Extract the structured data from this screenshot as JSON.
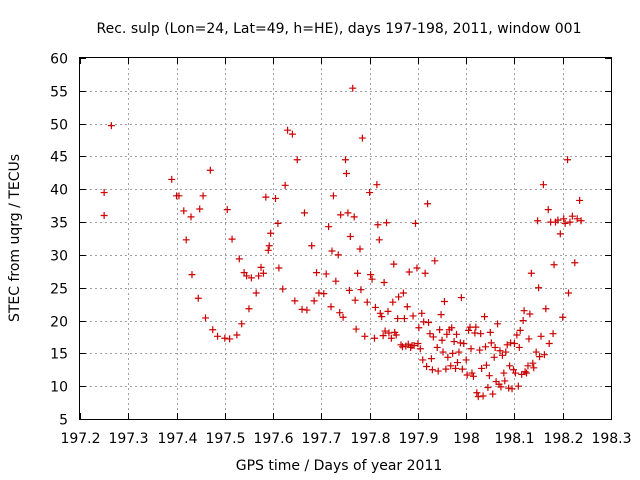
{
  "chart_data": {
    "type": "scatter",
    "title": "Rec. sulp (Lon=24, Lat=49, h=HE), days 197-198, 2011, window 001",
    "xlabel": "GPS time / Days of year 2011",
    "ylabel": "STEC from uqrg / TECUs",
    "xlim": [
      197.2,
      198.3
    ],
    "ylim": [
      5,
      60
    ],
    "xticks": [
      197.2,
      197.3,
      197.4,
      197.5,
      197.6,
      197.7,
      197.8,
      197.9,
      198,
      198.1,
      198.2,
      198.3
    ],
    "xtick_labels": [
      "197.2",
      "197.3",
      "197.4",
      "197.5",
      "197.6",
      "197.7",
      "197.8",
      "197.9",
      "198",
      "198.1",
      "198.2",
      "198.3"
    ],
    "yticks": [
      5,
      10,
      15,
      20,
      25,
      30,
      35,
      40,
      45,
      50,
      55,
      60
    ],
    "ytick_labels": [
      "5",
      "10",
      "15",
      "20",
      "25",
      "30",
      "35",
      "40",
      "45",
      "50",
      "55",
      "60"
    ],
    "grid": true,
    "marker": "plus",
    "color": "#cc0000",
    "points": [
      [
        197.25,
        39.5
      ],
      [
        197.25,
        36.0
      ],
      [
        197.265,
        49.7
      ],
      [
        197.39,
        41.5
      ],
      [
        197.4,
        39.0
      ],
      [
        197.405,
        39.0
      ],
      [
        197.415,
        36.7
      ],
      [
        197.42,
        32.3
      ],
      [
        197.43,
        35.8
      ],
      [
        197.432,
        27.0
      ],
      [
        197.445,
        23.4
      ],
      [
        197.448,
        37.0
      ],
      [
        197.455,
        39.0
      ],
      [
        197.46,
        20.4
      ],
      [
        197.47,
        42.9
      ],
      [
        197.475,
        18.6
      ],
      [
        197.485,
        17.6
      ],
      [
        197.5,
        17.3
      ],
      [
        197.505,
        36.9
      ],
      [
        197.51,
        17.2
      ],
      [
        197.515,
        32.4
      ],
      [
        197.525,
        17.8
      ],
      [
        197.53,
        29.4
      ],
      [
        197.535,
        19.5
      ],
      [
        197.54,
        27.3
      ],
      [
        197.545,
        26.8
      ],
      [
        197.55,
        21.8
      ],
      [
        197.555,
        26.5
      ],
      [
        197.565,
        24.2
      ],
      [
        197.57,
        26.8
      ],
      [
        197.575,
        28.1
      ],
      [
        197.58,
        27.2
      ],
      [
        197.585,
        38.8
      ],
      [
        197.59,
        30.7
      ],
      [
        197.592,
        31.4
      ],
      [
        197.595,
        33.3
      ],
      [
        197.605,
        38.6
      ],
      [
        197.61,
        34.8
      ],
      [
        197.612,
        28.0
      ],
      [
        197.62,
        24.8
      ],
      [
        197.625,
        40.6
      ],
      [
        197.63,
        49.0
      ],
      [
        197.64,
        48.4
      ],
      [
        197.645,
        23.0
      ],
      [
        197.65,
        44.5
      ],
      [
        197.66,
        21.7
      ],
      [
        197.665,
        36.4
      ],
      [
        197.67,
        21.6
      ],
      [
        197.68,
        31.4
      ],
      [
        197.685,
        23.0
      ],
      [
        197.69,
        27.3
      ],
      [
        197.695,
        24.2
      ],
      [
        197.705,
        24.1
      ],
      [
        197.71,
        27.1
      ],
      [
        197.715,
        34.3
      ],
      [
        197.72,
        22.1
      ],
      [
        197.722,
        30.6
      ],
      [
        197.725,
        39.0
      ],
      [
        197.73,
        26.0
      ],
      [
        197.735,
        30.0
      ],
      [
        197.738,
        21.2
      ],
      [
        197.74,
        36.1
      ],
      [
        197.745,
        20.5
      ],
      [
        197.75,
        44.5
      ],
      [
        197.752,
        42.4
      ],
      [
        197.755,
        36.4
      ],
      [
        197.758,
        24.6
      ],
      [
        197.76,
        32.8
      ],
      [
        197.765,
        55.4
      ],
      [
        197.768,
        35.8
      ],
      [
        197.77,
        23.1
      ],
      [
        197.772,
        18.7
      ],
      [
        197.775,
        27.2
      ],
      [
        197.78,
        30.9
      ],
      [
        197.782,
        24.7
      ],
      [
        197.785,
        47.8
      ],
      [
        197.79,
        17.6
      ],
      [
        197.795,
        22.8
      ],
      [
        197.8,
        39.5
      ],
      [
        197.802,
        27.0
      ],
      [
        197.805,
        26.3
      ],
      [
        197.81,
        17.3
      ],
      [
        197.812,
        22.0
      ],
      [
        197.815,
        40.7
      ],
      [
        197.817,
        34.6
      ],
      [
        197.82,
        32.3
      ],
      [
        197.822,
        21.1
      ],
      [
        197.825,
        20.6
      ],
      [
        197.828,
        17.7
      ],
      [
        197.83,
        25.8
      ],
      [
        197.832,
        18.4
      ],
      [
        197.835,
        34.9
      ],
      [
        197.838,
        21.4
      ],
      [
        197.84,
        18.1
      ],
      [
        197.845,
        17.3
      ],
      [
        197.848,
        22.8
      ],
      [
        197.85,
        28.6
      ],
      [
        197.852,
        18.2
      ],
      [
        197.855,
        17.8
      ],
      [
        197.858,
        20.3
      ],
      [
        197.86,
        23.6
      ],
      [
        197.865,
        16.3
      ],
      [
        197.868,
        16.0
      ],
      [
        197.87,
        24.2
      ],
      [
        197.872,
        20.3
      ],
      [
        197.875,
        16.1
      ],
      [
        197.878,
        22.1
      ],
      [
        197.88,
        16.4
      ],
      [
        197.882,
        27.4
      ],
      [
        197.885,
        15.9
      ],
      [
        197.888,
        16.2
      ],
      [
        197.89,
        20.7
      ],
      [
        197.892,
        16.2
      ],
      [
        197.895,
        34.8
      ],
      [
        197.898,
        28.0
      ],
      [
        197.9,
        16.5
      ],
      [
        197.902,
        18.9
      ],
      [
        197.905,
        15.7
      ],
      [
        197.908,
        21.1
      ],
      [
        197.91,
        14.0
      ],
      [
        197.912,
        19.8
      ],
      [
        197.915,
        27.2
      ],
      [
        197.918,
        13.0
      ],
      [
        197.92,
        37.8
      ],
      [
        197.922,
        19.7
      ],
      [
        197.925,
        18.0
      ],
      [
        197.928,
        14.2
      ],
      [
        197.93,
        12.5
      ],
      [
        197.932,
        17.5
      ],
      [
        197.935,
        29.1
      ],
      [
        197.94,
        15.9
      ],
      [
        197.942,
        12.3
      ],
      [
        197.945,
        18.6
      ],
      [
        197.948,
        20.9
      ],
      [
        197.95,
        17.0
      ],
      [
        197.952,
        15.2
      ],
      [
        197.955,
        22.9
      ],
      [
        197.958,
        12.6
      ],
      [
        197.96,
        17.9
      ],
      [
        197.962,
        14.4
      ],
      [
        197.965,
        18.6
      ],
      [
        197.968,
        13.1
      ],
      [
        197.97,
        18.9
      ],
      [
        197.972,
        15.0
      ],
      [
        197.975,
        16.8
      ],
      [
        197.978,
        12.7
      ],
      [
        197.98,
        17.9
      ],
      [
        197.982,
        13.6
      ],
      [
        197.985,
        15.2
      ],
      [
        197.988,
        16.6
      ],
      [
        197.99,
        23.5
      ],
      [
        197.992,
        12.6
      ],
      [
        197.995,
        16.5
      ],
      [
        198.0,
        14.0
      ],
      [
        198.002,
        11.7
      ],
      [
        198.005,
        18.5
      ],
      [
        198.008,
        19.0
      ],
      [
        198.01,
        15.7
      ],
      [
        198.012,
        12.0
      ],
      [
        198.015,
        11.5
      ],
      [
        198.018,
        18.1
      ],
      [
        198.02,
        19.0
      ],
      [
        198.022,
        9.0
      ],
      [
        198.025,
        8.4
      ],
      [
        198.028,
        15.5
      ],
      [
        198.03,
        18.0
      ],
      [
        198.032,
        12.7
      ],
      [
        198.035,
        8.5
      ],
      [
        198.038,
        20.6
      ],
      [
        198.04,
        16.0
      ],
      [
        198.042,
        13.2
      ],
      [
        198.045,
        9.8
      ],
      [
        198.048,
        11.6
      ],
      [
        198.05,
        18.2
      ],
      [
        198.052,
        16.6
      ],
      [
        198.055,
        8.8
      ],
      [
        198.058,
        14.4
      ],
      [
        198.06,
        15.9
      ],
      [
        198.062,
        10.7
      ],
      [
        198.065,
        19.5
      ],
      [
        198.068,
        10.3
      ],
      [
        198.07,
        15.4
      ],
      [
        198.072,
        9.9
      ],
      [
        198.075,
        14.7
      ],
      [
        198.078,
        12.0
      ],
      [
        198.08,
        10.8
      ],
      [
        198.082,
        15.2
      ],
      [
        198.085,
        16.3
      ],
      [
        198.088,
        9.7
      ],
      [
        198.09,
        13.1
      ],
      [
        198.092,
        16.6
      ],
      [
        198.095,
        9.6
      ],
      [
        198.098,
        12.5
      ],
      [
        198.1,
        16.5
      ],
      [
        198.102,
        12.0
      ],
      [
        198.105,
        17.8
      ],
      [
        198.108,
        10.0
      ],
      [
        198.11,
        15.9
      ],
      [
        198.112,
        18.5
      ],
      [
        198.115,
        11.8
      ],
      [
        198.118,
        20.0
      ],
      [
        198.12,
        21.5
      ],
      [
        198.122,
        12.2
      ],
      [
        198.125,
        12.0
      ],
      [
        198.128,
        13.1
      ],
      [
        198.13,
        17.2
      ],
      [
        198.132,
        21.0
      ],
      [
        198.135,
        27.2
      ],
      [
        198.138,
        13.5
      ],
      [
        198.14,
        12.8
      ],
      [
        198.145,
        15.2
      ],
      [
        198.148,
        35.2
      ],
      [
        198.15,
        25.0
      ],
      [
        198.152,
        14.5
      ],
      [
        198.155,
        17.6
      ],
      [
        198.16,
        40.7
      ],
      [
        198.162,
        14.8
      ],
      [
        198.165,
        21.8
      ],
      [
        198.17,
        36.9
      ],
      [
        198.172,
        16.5
      ],
      [
        198.175,
        35.0
      ],
      [
        198.18,
        18.0
      ],
      [
        198.182,
        28.5
      ],
      [
        198.185,
        35.0
      ],
      [
        198.19,
        35.3
      ],
      [
        198.195,
        33.2
      ],
      [
        198.2,
        20.5
      ],
      [
        198.202,
        35.5
      ],
      [
        198.205,
        34.8
      ],
      [
        198.21,
        44.5
      ],
      [
        198.212,
        24.2
      ],
      [
        198.215,
        35.0
      ],
      [
        198.22,
        35.9
      ],
      [
        198.225,
        28.8
      ],
      [
        198.23,
        35.5
      ],
      [
        198.235,
        38.3
      ],
      [
        198.238,
        35.2
      ]
    ]
  }
}
